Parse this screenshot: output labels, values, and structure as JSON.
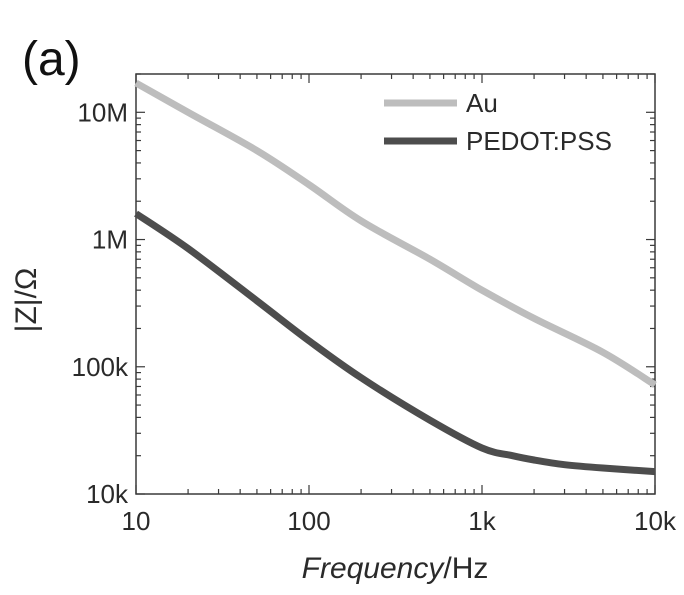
{
  "panel_label": "(a)",
  "chart_data": {
    "type": "line",
    "xscale": "log",
    "yscale": "log",
    "xlabel": {
      "italic": "Frequency",
      "rest": "/Hz"
    },
    "ylabel": "|Z|/Ω",
    "xlim": [
      10,
      10000
    ],
    "ylim": [
      10000,
      20000000
    ],
    "xticks": [
      10,
      100,
      1000,
      10000
    ],
    "xtick_labels": [
      "10",
      "100",
      "1k",
      "10k"
    ],
    "yticks": [
      10000,
      100000,
      1000000,
      10000000
    ],
    "ytick_labels": [
      "10k",
      "100k",
      "1M",
      "10M"
    ],
    "grid": false,
    "legend_position": "top-right",
    "series": [
      {
        "name": "Au",
        "color": "#bdbdbd",
        "x": [
          10,
          20,
          50,
          100,
          200,
          500,
          1000,
          2000,
          5000,
          10000
        ],
        "y": [
          17000000,
          10000000,
          5000000,
          2700000,
          1400000,
          700000,
          400000,
          240000,
          130000,
          72000
        ]
      },
      {
        "name": "PEDOT:PSS",
        "color": "#4d4d4d",
        "x": [
          10,
          20,
          50,
          100,
          200,
          500,
          1000,
          1500,
          2000,
          3000,
          5000,
          10000
        ],
        "y": [
          1600000,
          850000,
          330000,
          160000,
          82000,
          38000,
          23000,
          20000,
          18500,
          17000,
          16000,
          15000
        ]
      }
    ]
  }
}
